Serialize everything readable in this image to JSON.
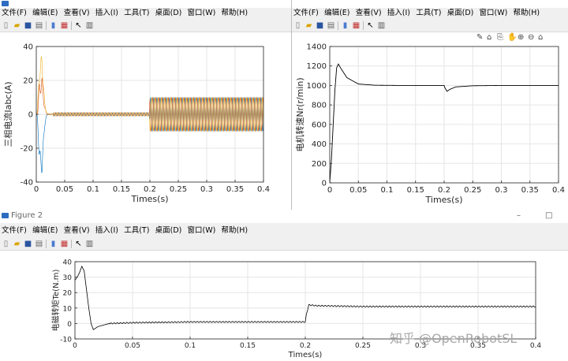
{
  "menu": [
    "文件(F)",
    "编辑(E)",
    "查看(V)",
    "插入(I)",
    "工具(T)",
    "桌面(D)",
    "窗口(W)",
    "帮助(H)"
  ],
  "figure2": {
    "title": "Figure 2"
  },
  "window_buttons": {
    "minimize": "–",
    "maximize": "□",
    "close": "✕"
  },
  "watermark": "知乎 @OpenRobotSL",
  "chart_data": [
    {
      "type": "line",
      "ylabel": "三相电流Iabc(A)",
      "xlabel": "Times(s)",
      "xlim": [
        0,
        0.4
      ],
      "ylim": [
        -40,
        40
      ],
      "xticks": [
        0,
        0.05,
        0.1,
        0.15,
        0.2,
        0.25,
        0.3,
        0.35,
        0.4
      ],
      "yticks": [
        -40,
        -20,
        0,
        20,
        40
      ],
      "grid": true,
      "series": [
        {
          "color": "#0072bd",
          "description": "phase current, starting transient to ±30 A, ~0 A until 0.2 s, then ~10 A amplitude sine"
        },
        {
          "color": "#d95319",
          "description": "phase current, shifted 120°"
        },
        {
          "color": "#edb120",
          "description": "phase current, shifted 240°"
        }
      ],
      "points_approx": {
        "x": [
          0,
          0.005,
          0.01,
          0.015,
          0.02,
          0.03,
          0.1,
          0.199,
          0.2,
          0.3,
          0.4
        ],
        "amplitude": [
          0,
          30,
          30,
          8,
          2,
          1,
          1,
          1,
          10,
          10,
          10
        ]
      }
    },
    {
      "type": "line",
      "ylabel": "电机转速Nr(r/min)",
      "xlabel": "Times(s)",
      "xlim": [
        0,
        0.4
      ],
      "ylim": [
        0,
        1400
      ],
      "xticks": [
        0,
        0.05,
        0.1,
        0.15,
        0.2,
        0.25,
        0.3,
        0.35,
        0.4
      ],
      "yticks": [
        0,
        200,
        400,
        600,
        800,
        1000,
        1200,
        1400
      ],
      "grid": true,
      "series": [
        {
          "color": "#000000",
          "x": [
            0,
            0.003,
            0.006,
            0.009,
            0.012,
            0.015,
            0.02,
            0.03,
            0.05,
            0.08,
            0.12,
            0.2,
            0.201,
            0.205,
            0.21,
            0.22,
            0.25,
            0.3,
            0.4
          ],
          "y": [
            0,
            250,
            600,
            950,
            1180,
            1220,
            1170,
            1080,
            1015,
            1002,
            1000,
            1000,
            980,
            940,
            960,
            985,
            997,
            1000,
            1000
          ]
        }
      ]
    },
    {
      "type": "line",
      "ylabel": "电磁转矩Te(N.m)",
      "xlabel": "Times(s)",
      "xlim": [
        0,
        0.4
      ],
      "ylim": [
        -10,
        40
      ],
      "xticks": [
        0,
        0.05,
        0.1,
        0.15,
        0.2,
        0.25,
        0.3,
        0.35,
        0.4
      ],
      "yticks": [
        -10,
        0,
        10,
        20,
        30,
        40
      ],
      "grid": true,
      "series": [
        {
          "color": "#000000",
          "x": [
            0,
            0.002,
            0.004,
            0.006,
            0.008,
            0.01,
            0.012,
            0.014,
            0.016,
            0.018,
            0.02,
            0.025,
            0.03,
            0.05,
            0.1,
            0.15,
            0.199,
            0.2,
            0.201,
            0.203,
            0.21,
            0.25,
            0.3,
            0.35,
            0.4
          ],
          "y": [
            28,
            30,
            33,
            37,
            34,
            22,
            10,
            0,
            -4,
            -3,
            -2,
            -1,
            0,
            0.5,
            1,
            1,
            1,
            1,
            6,
            12,
            11.5,
            11,
            11,
            11,
            11
          ]
        }
      ]
    }
  ]
}
